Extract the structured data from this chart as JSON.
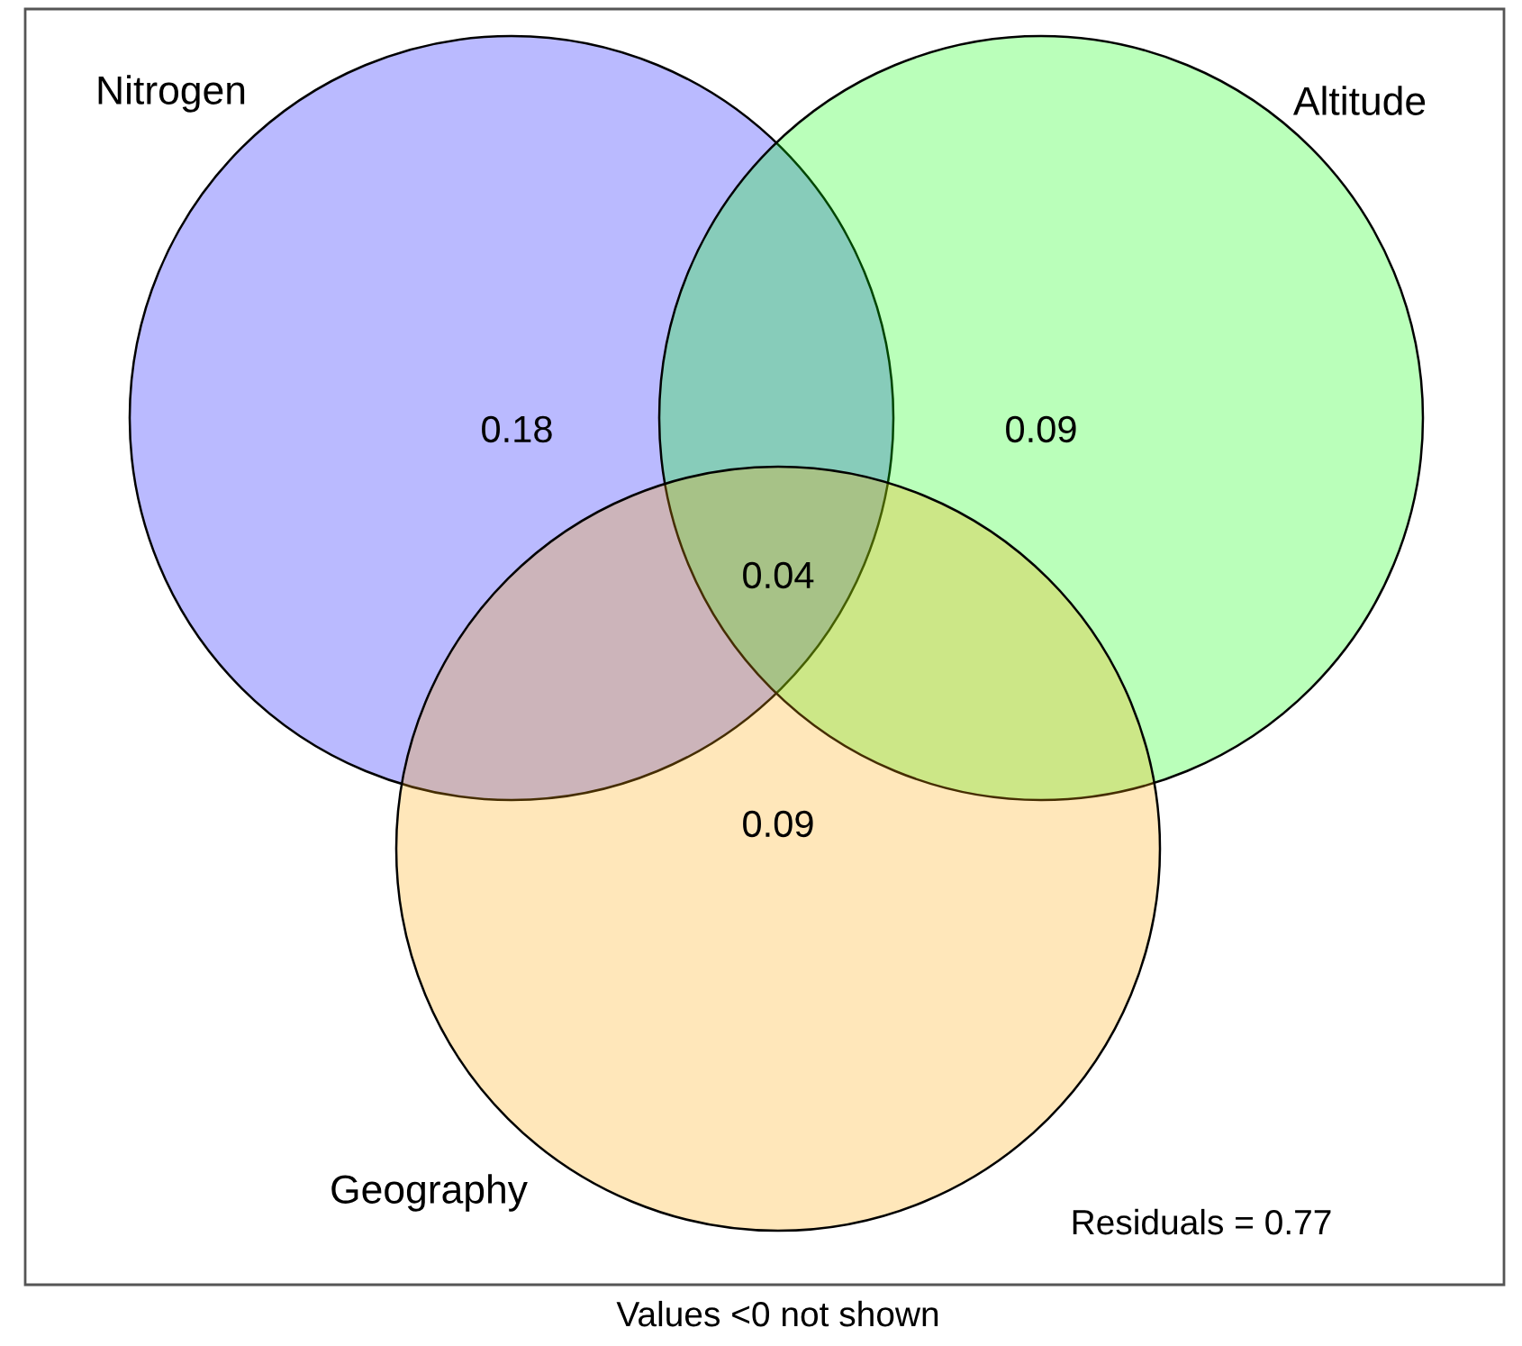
{
  "chart_data": {
    "type": "other",
    "categories": [
      "Nitrogen",
      "Altitude",
      null,
      "Geography"
    ],
    "values": [
      0.18,
      0.09,
      0.04,
      0.09
    ],
    "data_labels": true,
    "colors": [
      "#0000ff",
      "#00ff00",
      null,
      "#ffa500"
    ],
    "annotations": [
      "Residuals = 0.77",
      "Values <0 not shown"
    ]
  }
}
